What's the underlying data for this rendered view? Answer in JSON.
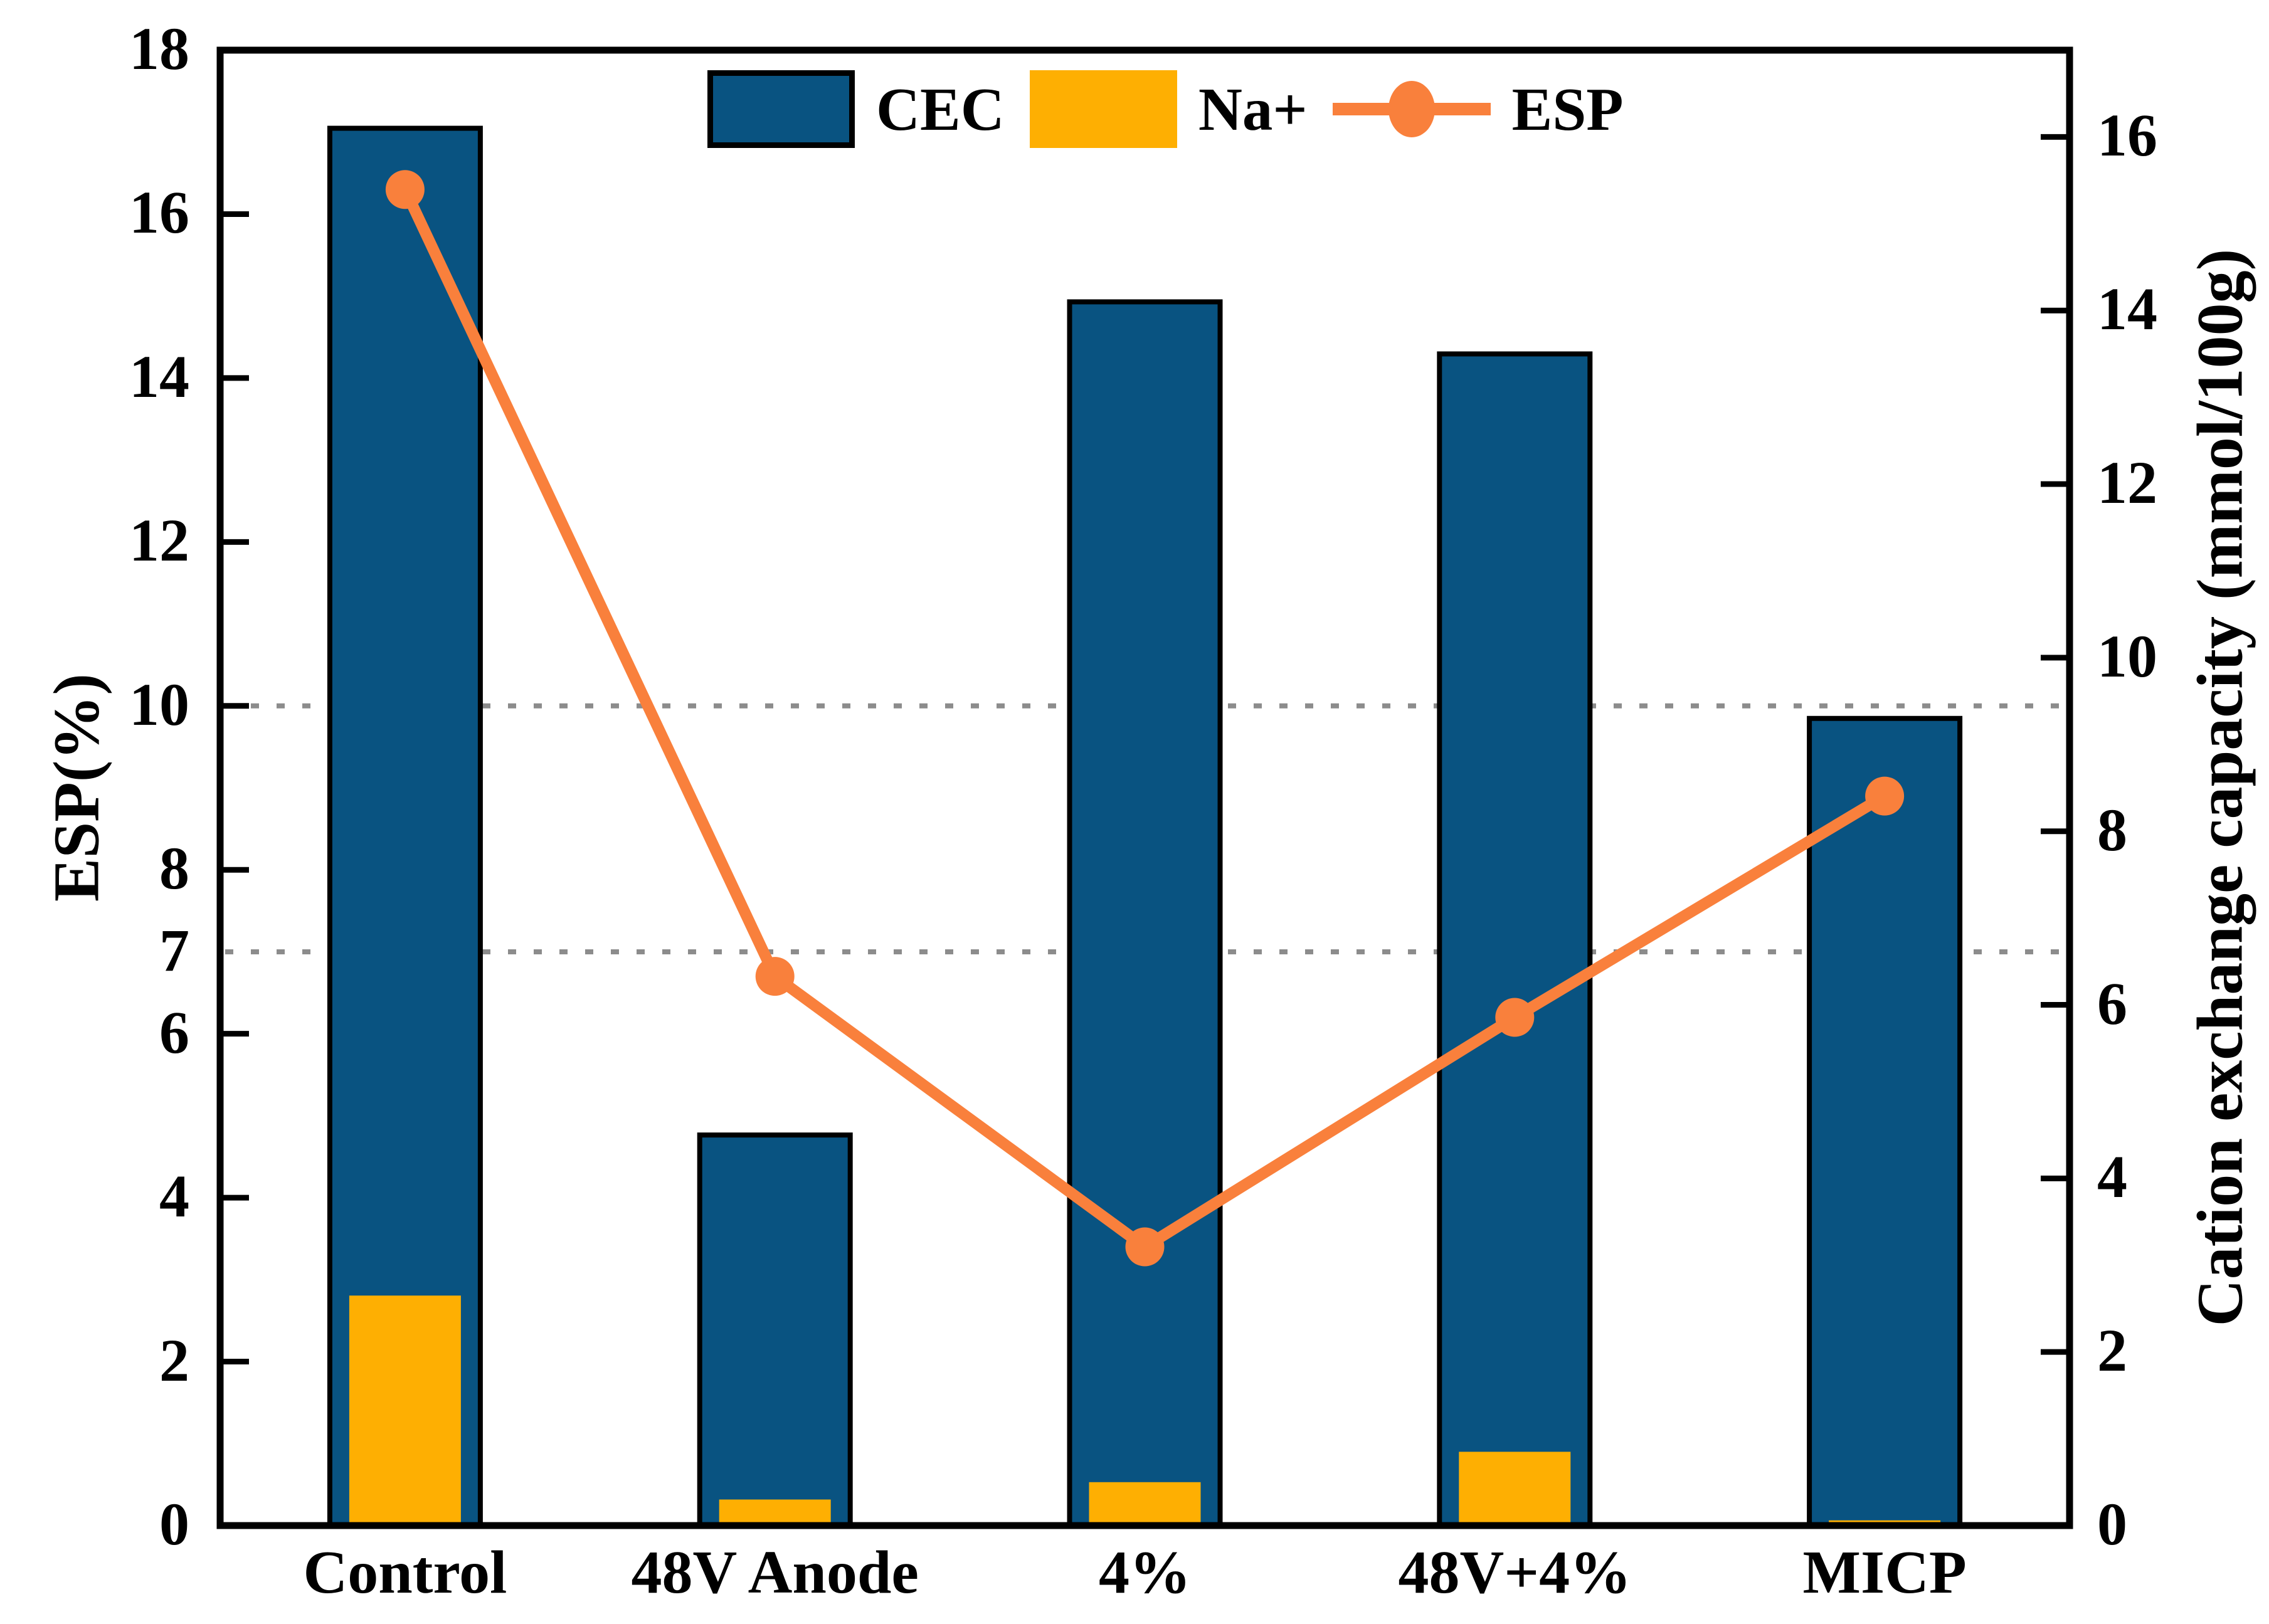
{
  "chart_data": {
    "type": "bar+line combo",
    "title": "",
    "categories": [
      "Control",
      "48V Anode",
      "4%",
      "48V+4%",
      "MICP"
    ],
    "series": [
      {
        "name": "CEC",
        "type": "bar",
        "axis": "right",
        "unit": "mmol/100g",
        "color": "#095381",
        "edge_color": "#000000",
        "values": [
          16.1,
          4.5,
          14.1,
          13.5,
          9.3
        ]
      },
      {
        "name": "Na+",
        "type": "bar",
        "axis": "right",
        "unit": "mmol/100g",
        "color": "#FEAF02",
        "values": [
          2.65,
          0.3,
          0.5,
          0.85,
          0.06
        ]
      },
      {
        "name": "ESP",
        "type": "line",
        "axis": "left",
        "unit": "%",
        "color": "#F9803C",
        "marker": "circle",
        "values": [
          16.3,
          6.7,
          3.4,
          6.2,
          8.9
        ]
      }
    ],
    "left_axis": {
      "label": "ESP(%)",
      "lim": [
        0,
        18
      ],
      "tick_values": [
        0,
        2,
        4,
        6,
        8,
        10,
        12,
        14,
        16,
        18
      ],
      "extra_tick_labels": [
        7
      ],
      "gridline_values": [
        7,
        10
      ],
      "gridline_style": "dotted",
      "gridline_color": "#8C8C8C"
    },
    "right_axis": {
      "label": "Cation exchange capacity (mmol/100g)",
      "lim": [
        0,
        17
      ],
      "tick_values": [
        0,
        2,
        4,
        6,
        8,
        10,
        12,
        14,
        16
      ]
    },
    "legend_position": "upper center",
    "grid": "horizontal dotted lines at ESP=7 and ESP=10"
  }
}
